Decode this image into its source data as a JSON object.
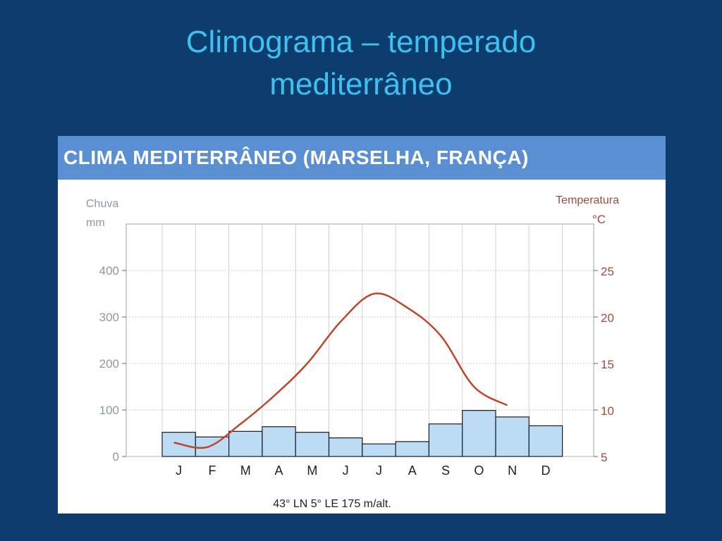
{
  "slide": {
    "title_line1": "Climograma – temperado",
    "title_line2": "mediterrâneo"
  },
  "chart_data": {
    "type": "bar-line",
    "title": "CLIMA MEDITERRÂNEO (MARSELHA, FRANÇA)",
    "categories": [
      "J",
      "F",
      "M",
      "A",
      "M",
      "J",
      "J",
      "A",
      "S",
      "O",
      "N",
      "D"
    ],
    "series": [
      {
        "name": "Chuva",
        "type": "bar",
        "axis": "left",
        "values": [
          52,
          42,
          54,
          64,
          52,
          40,
          27,
          32,
          70,
          99,
          85,
          66
        ]
      },
      {
        "name": "Temperatura",
        "type": "line",
        "axis": "right",
        "values": [
          6.5,
          6,
          8.5,
          11.5,
          15,
          19.5,
          22.5,
          21,
          18,
          12.5,
          10.5,
          null
        ]
      }
    ],
    "left_axis": {
      "label_line1": "Chuva",
      "label_line2": "mm",
      "ticks": [
        0,
        100,
        200,
        300,
        400
      ],
      "range": [
        0,
        500
      ]
    },
    "right_axis": {
      "label_line1": "Temperatura",
      "label_line2": "°C",
      "ticks": [
        5,
        10,
        15,
        20,
        25
      ],
      "range": [
        5,
        30
      ]
    },
    "footnote": "43° LN  5° LE  175 m/alt.",
    "grid": true,
    "colors": {
      "bar_fill": "#bcdcf5",
      "bar_stroke": "#1a1a1a",
      "line": "#c0452c",
      "left_axis_text": "#8a9aa8",
      "right_axis_text": "#a04a3a",
      "grid": "#d0d0d0"
    }
  }
}
